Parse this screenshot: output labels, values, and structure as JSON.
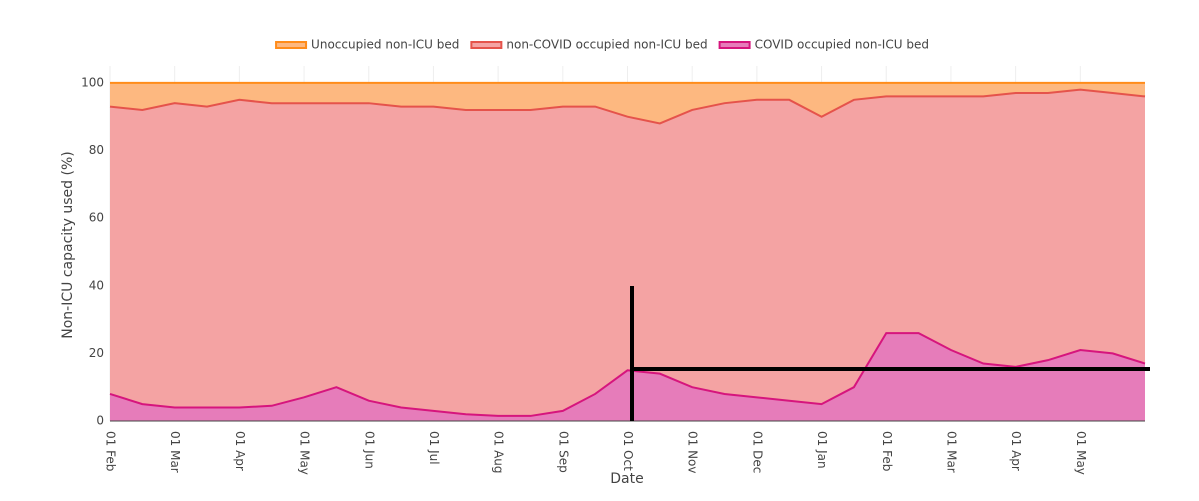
{
  "chart_data": {
    "type": "stacked_area",
    "x_label": "Date",
    "y_label": "Non-ICU capacity used (%)",
    "categories": [
      "01 Feb",
      null,
      "01 Mar",
      null,
      "01 Apr",
      null,
      "01 May",
      null,
      "01 Jun",
      null,
      "01 Jul",
      null,
      "01 Aug",
      null,
      "01 Sep",
      null,
      "01 Oct",
      null,
      "01 Nov",
      null,
      "01 Dec",
      null,
      "01 Jan",
      null,
      "01 Feb",
      null,
      "01 Mar",
      null,
      "01 Apr",
      null,
      "01 May",
      null,
      null
    ],
    "series": [
      {
        "name": "COVID occupied non-ICU bed",
        "color": "#d6157d",
        "fill": "#e67cba",
        "values": [
          8,
          5,
          4,
          4,
          4,
          4.5,
          7,
          10,
          6,
          4,
          3,
          2,
          1.5,
          1.5,
          3,
          8,
          15,
          14,
          10,
          8,
          7,
          6,
          5,
          10,
          26,
          26,
          21,
          17,
          16,
          18,
          21,
          20,
          17
        ]
      },
      {
        "name": "non-COVID occupied non-ICU bed",
        "color": "#e5534b",
        "fill": "#f4a3a3",
        "values": [
          85,
          87,
          90,
          89,
          91,
          89.5,
          87,
          84,
          88,
          89,
          90,
          90,
          90.5,
          90.5,
          90,
          85,
          75,
          74,
          82,
          86,
          88,
          89,
          85,
          85,
          70,
          70,
          75,
          79,
          81,
          79,
          77,
          77,
          79
        ]
      },
      {
        "name": "Unoccupied non-ICU bed",
        "color": "#ff8c1a",
        "fill": "#fdb880",
        "values": [
          7,
          8,
          6,
          7,
          5,
          6,
          6,
          6,
          6,
          7,
          7,
          8,
          8,
          8,
          7,
          7,
          10,
          12,
          8,
          6,
          5,
          5,
          10,
          5,
          4,
          4,
          4,
          4,
          3,
          3,
          2,
          3,
          4
        ]
      }
    ],
    "legend_order": [
      2,
      1,
      0
    ],
    "ylim": [
      0,
      105
    ],
    "yticks": [
      0,
      20,
      40,
      60,
      80,
      100
    ],
    "grid": true
  }
}
